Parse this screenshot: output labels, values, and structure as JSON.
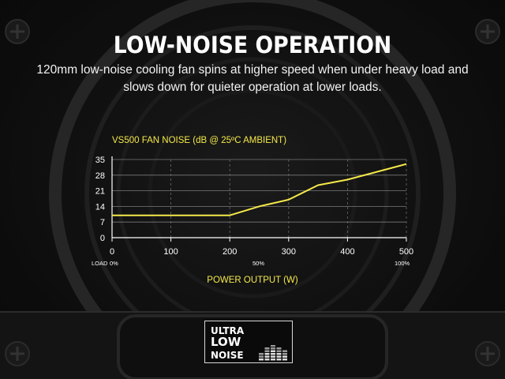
{
  "heading": "LOW-NOISE OPERATION",
  "description": "120mm low-noise cooling fan spins at higher speed when under heavy load and slows down for quieter operation at lower loads.",
  "colors": {
    "accent": "#f5e94a",
    "text": "#ffffff",
    "background": "#0b0b0b"
  },
  "badge": {
    "line1": "ULTRA",
    "line2": "LOW",
    "line3": "NOISE",
    "icon": "equalizer-bars-icon"
  },
  "chart_data": {
    "type": "line",
    "title": "VS500 FAN NOISE (dB @ 25ºC AMBIENT)",
    "xlabel": "POWER OUTPUT (W)",
    "ylabel": "",
    "x": [
      0,
      100,
      200,
      250,
      300,
      350,
      400,
      450,
      500
    ],
    "series": [
      {
        "values": [
          10,
          10,
          10,
          14,
          17,
          23.5,
          26,
          29.5,
          33
        ]
      }
    ],
    "xlim": [
      0,
      500
    ],
    "ylim": [
      0,
      35
    ],
    "xticks": [
      0,
      100,
      200,
      300,
      400,
      500
    ],
    "yticks": [
      0,
      7,
      14,
      21,
      28,
      35
    ],
    "grid": true,
    "load_labels": {
      "prefix": "LOAD",
      "low": "0%",
      "mid": "50%",
      "high": "100%"
    }
  }
}
